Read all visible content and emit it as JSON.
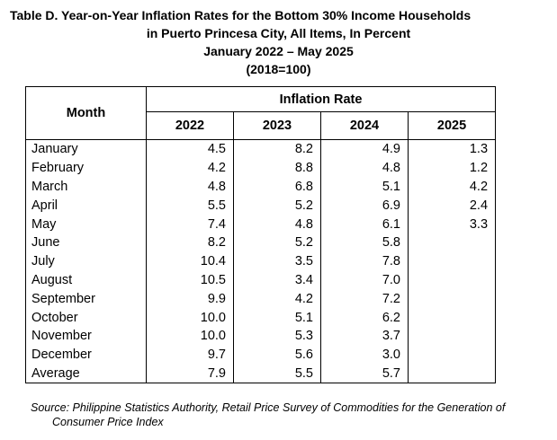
{
  "title": {
    "line1": "Table D. Year-on-Year Inflation Rates for the Bottom 30% Income Households",
    "line2": "in Puerto Princesa City, All Items, In Percent",
    "line3": "January 2022 – May 2025",
    "line4": "(2018=100)"
  },
  "table": {
    "month_header": "Month",
    "group_header": "Inflation Rate",
    "years": [
      "2022",
      "2023",
      "2024",
      "2025"
    ],
    "rows": [
      {
        "month": "January",
        "values": [
          "4.5",
          "8.2",
          "4.9",
          "1.3"
        ]
      },
      {
        "month": "February",
        "values": [
          "4.2",
          "8.8",
          "4.8",
          "1.2"
        ]
      },
      {
        "month": "March",
        "values": [
          "4.8",
          "6.8",
          "5.1",
          "4.2"
        ]
      },
      {
        "month": "April",
        "values": [
          "5.5",
          "5.2",
          "6.9",
          "2.4"
        ]
      },
      {
        "month": "May",
        "values": [
          "7.4",
          "4.8",
          "6.1",
          "3.3"
        ]
      },
      {
        "month": "June",
        "values": [
          "8.2",
          "5.2",
          "5.8",
          ""
        ]
      },
      {
        "month": "July",
        "values": [
          "10.4",
          "3.5",
          "7.8",
          ""
        ]
      },
      {
        "month": "August",
        "values": [
          "10.5",
          "3.4",
          "7.0",
          ""
        ]
      },
      {
        "month": "September",
        "values": [
          "9.9",
          "4.2",
          "7.2",
          ""
        ]
      },
      {
        "month": "October",
        "values": [
          "10.0",
          "5.1",
          "6.2",
          ""
        ]
      },
      {
        "month": "November",
        "values": [
          "10.0",
          "5.3",
          "3.7",
          ""
        ]
      },
      {
        "month": "December",
        "values": [
          "9.7",
          "5.6",
          "3.0",
          ""
        ]
      },
      {
        "month": "Average",
        "values": [
          "7.9",
          "5.5",
          "5.7",
          ""
        ]
      }
    ]
  },
  "source": {
    "line1": "Source: Philippine Statistics Authority, Retail Price Survey of Commodities for the Generation of",
    "line2": "Consumer Price Index"
  }
}
